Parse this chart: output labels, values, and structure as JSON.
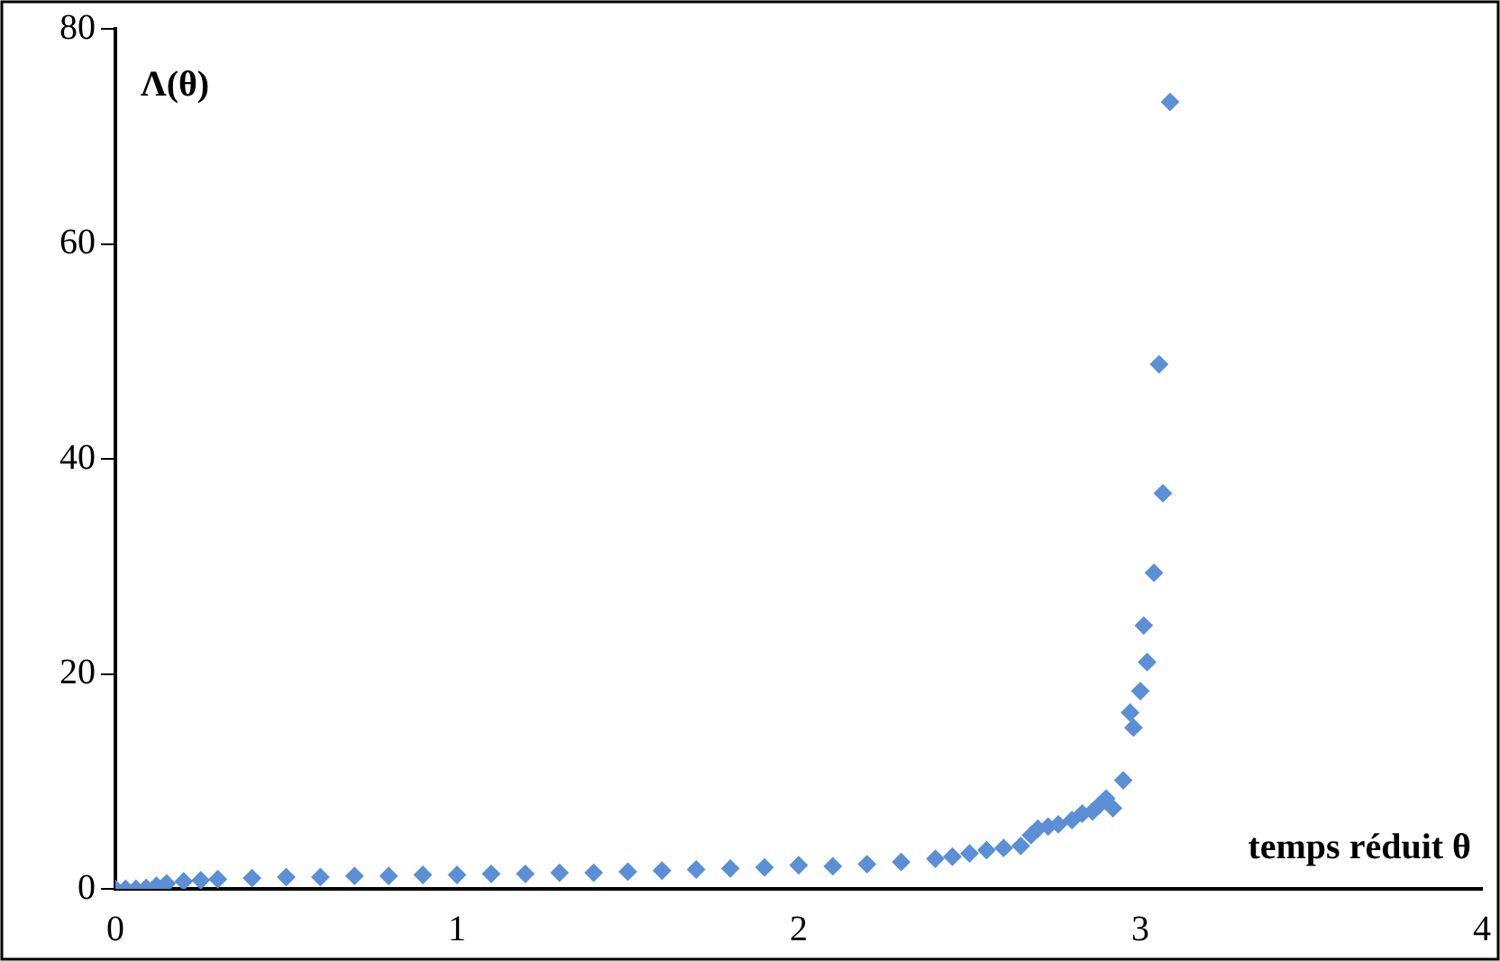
{
  "chart_data": {
    "type": "scatter",
    "xlabel": "temps réduit θ",
    "ylabel": "Λ(θ)",
    "x": [
      0,
      0.03,
      0.06,
      0.09,
      0.12,
      0.15,
      0.2,
      0.25,
      0.3,
      0.4,
      0.5,
      0.6,
      0.7,
      0.8,
      0.9,
      1.0,
      1.1,
      1.2,
      1.3,
      1.4,
      1.5,
      1.6,
      1.7,
      1.8,
      1.9,
      2.0,
      2.1,
      2.2,
      2.3,
      2.4,
      2.45,
      2.5,
      2.55,
      2.6,
      2.65,
      2.68,
      2.7,
      2.73,
      2.76,
      2.8,
      2.83,
      2.86,
      2.88,
      2.9,
      2.92,
      2.95,
      2.97,
      2.98,
      3.0,
      3.01,
      3.02,
      3.04,
      3.055,
      3.066,
      3.087
    ],
    "values": [
      0,
      0,
      0,
      0.1,
      0.3,
      0.5,
      0.7,
      0.8,
      0.9,
      1.0,
      1.1,
      1.1,
      1.2,
      1.2,
      1.3,
      1.3,
      1.4,
      1.4,
      1.5,
      1.5,
      1.6,
      1.7,
      1.8,
      1.9,
      2.0,
      2.2,
      2.1,
      2.3,
      2.5,
      2.8,
      3.0,
      3.3,
      3.6,
      3.8,
      4.0,
      5.0,
      5.6,
      5.8,
      6.0,
      6.4,
      7.0,
      7.2,
      7.8,
      8.4,
      7.5,
      10.1,
      16.4,
      15.0,
      18.4,
      24.5,
      21.1,
      29.4,
      48.8,
      36.8,
      73.2
    ],
    "color": "#5b8fd6",
    "marker": "diamond",
    "xlim": [
      0,
      4
    ],
    "xticks": [
      0,
      1,
      2,
      3,
      4
    ],
    "ylim": [
      0,
      80
    ],
    "yticks": [
      0,
      20,
      40,
      60,
      80
    ],
    "grid": false,
    "legend": false
  }
}
